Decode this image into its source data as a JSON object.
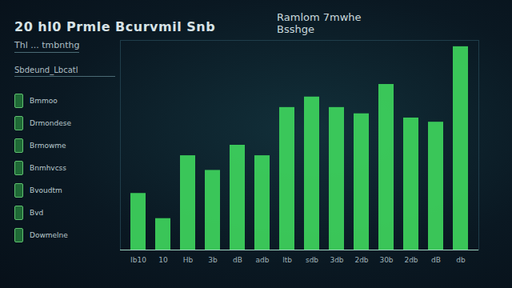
{
  "chart_data": {
    "type": "bar",
    "title": "20 hl0 Prmle Bcurvmil Snb",
    "subtitle": "Ramlom 7mwhe Bsshge",
    "annotations": [
      "Thl ... tmbnthg",
      "Sbdeund_Lbcatl",
      "Bmmoo",
      "Drmondese",
      "Brmowme",
      "Bnmhvcss",
      "Bvoudtm",
      "Bvd",
      "Dowmelne"
    ],
    "categories": [
      "Ib10",
      "10",
      "Hb",
      "3b",
      "dB",
      "adb",
      "ltb",
      "sdb",
      "3db",
      "2db",
      "30b",
      "2db",
      "dB",
      "db"
    ],
    "values": [
      27,
      15,
      45,
      38,
      50,
      45,
      68,
      73,
      68,
      65,
      79,
      63,
      61,
      97
    ],
    "color": "#3fd85e",
    "ylim": [
      0,
      100
    ],
    "tick_labels": "x"
  }
}
